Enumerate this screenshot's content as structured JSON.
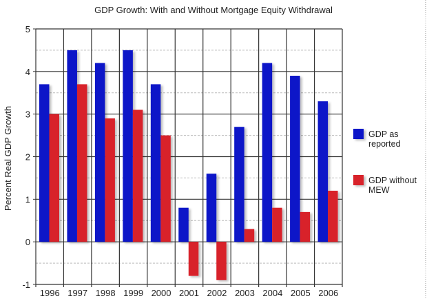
{
  "chart_data": {
    "type": "bar",
    "title": "GDP Growth: With and Without Mortgage Equity Withdrawal",
    "xlabel": "",
    "ylabel": "Percent Real GDP Growth",
    "categories": [
      "1996",
      "1997",
      "1998",
      "1999",
      "2000",
      "2001",
      "2002",
      "2003",
      "2004",
      "2005",
      "2006"
    ],
    "series": [
      {
        "name": "GDP as reported",
        "color": "#0a14c8",
        "values": [
          3.7,
          4.5,
          4.2,
          4.5,
          3.7,
          0.8,
          1.6,
          2.7,
          4.2,
          3.9,
          3.3
        ]
      },
      {
        "name": "GDP without MEW",
        "color": "#d8202c",
        "values": [
          3.0,
          3.7,
          2.9,
          3.1,
          2.5,
          -0.8,
          -0.9,
          0.3,
          0.8,
          0.7,
          1.2
        ]
      }
    ],
    "ylim": [
      -1,
      5
    ],
    "yticks": [
      "-1",
      "0",
      "1",
      "2",
      "3",
      "4",
      "5"
    ],
    "grid": true,
    "legend": "right",
    "legend_labels": [
      [
        "GDP as",
        "reported"
      ],
      [
        "GDP without",
        "MEW"
      ]
    ]
  }
}
